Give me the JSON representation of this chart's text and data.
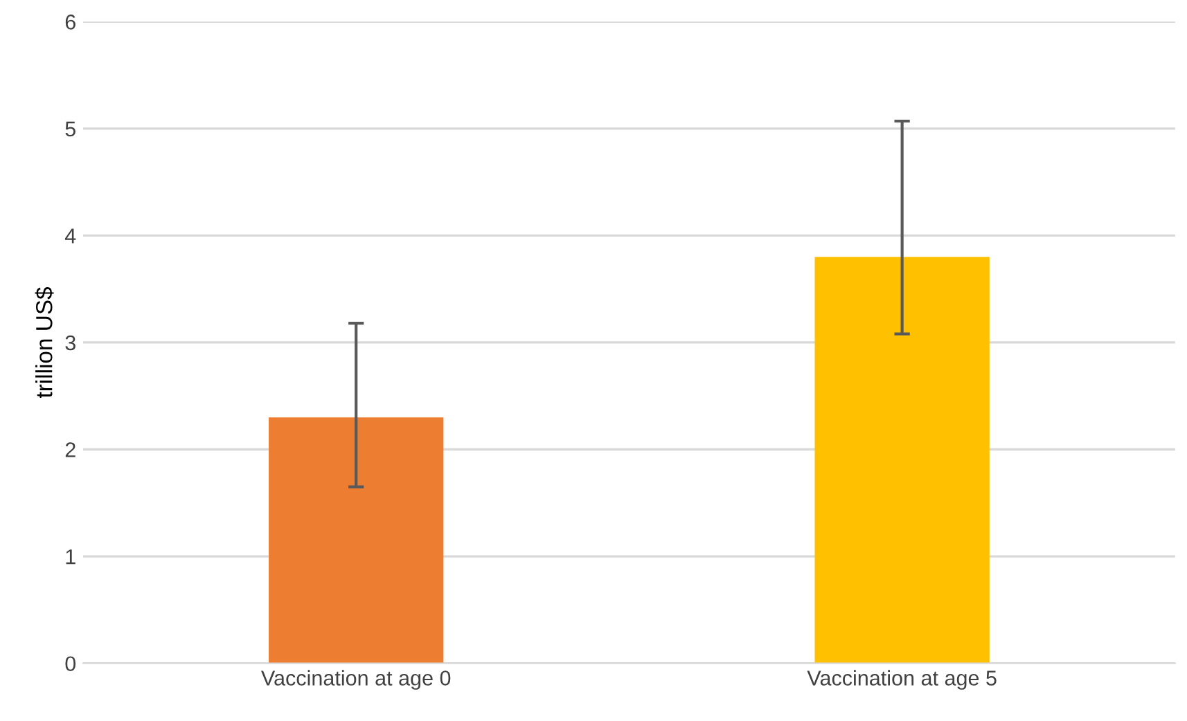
{
  "chart_data": {
    "type": "bar",
    "ylabel": "trillion US$",
    "categories": [
      "Vaccination at age 0",
      "Vaccination at age 5"
    ],
    "values": [
      2.3,
      3.8
    ],
    "colors": [
      "#ed7d31",
      "#ffc000"
    ],
    "errors": [
      [
        1.65,
        3.18
      ],
      [
        3.08,
        5.07
      ]
    ],
    "ylim": [
      0,
      6
    ],
    "yticks": [
      0,
      1,
      2,
      3,
      4,
      5,
      6
    ],
    "grid": "y"
  }
}
